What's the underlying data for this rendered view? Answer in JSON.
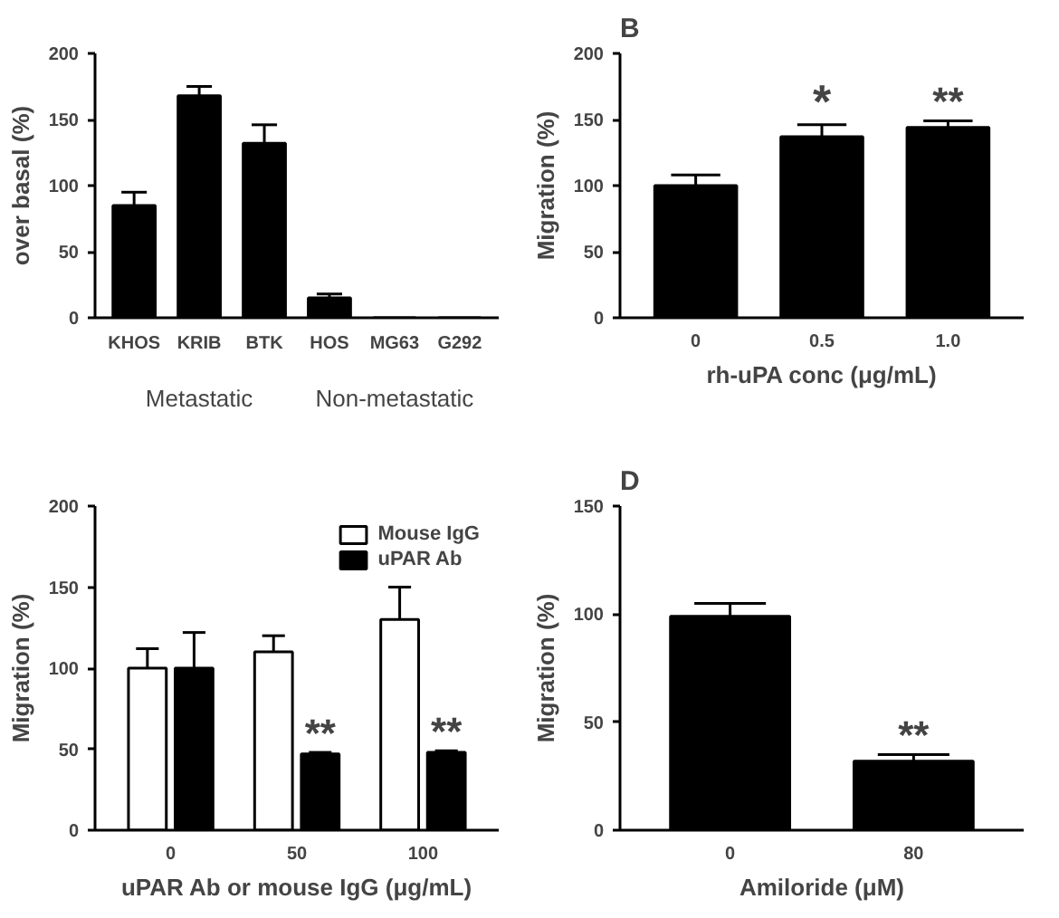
{
  "chart_data": [
    {
      "type": "bar",
      "ylabel": "over basal (%)",
      "categories": [
        "KHOS",
        "KRIB",
        "BTK",
        "HOS",
        "MG63",
        "G292"
      ],
      "values": [
        85,
        168,
        132,
        15,
        0,
        0
      ],
      "color": "#000000",
      "errors": [
        [
          85,
          95
        ],
        [
          168,
          175
        ],
        [
          132,
          146
        ],
        [
          15,
          18
        ],
        null,
        null
      ],
      "ylim": [
        0,
        200
      ],
      "yticks": [
        0,
        50,
        100,
        150,
        200
      ],
      "grid": false,
      "legend": false,
      "annotations": [
        "Metastatic",
        "Non-metastatic"
      ]
    },
    {
      "type": "bar",
      "title": "B",
      "ylabel": "Migration (%)",
      "xlabel": "rh-uPA conc (μg/mL)",
      "categories": [
        "0",
        "0.5",
        "1.0"
      ],
      "values": [
        100,
        137,
        144
      ],
      "color": "#000000",
      "errors": [
        [
          100,
          108
        ],
        [
          137,
          146
        ],
        [
          144,
          149
        ]
      ],
      "ylim": [
        0,
        200
      ],
      "yticks": [
        0,
        50,
        100,
        150,
        200
      ],
      "grid": false,
      "legend": false,
      "annotations": [
        {
          "text": "*",
          "x": "0.5",
          "y": 146
        },
        {
          "text": "**",
          "x": "1.0",
          "y": 149
        }
      ]
    },
    {
      "type": "bar",
      "ylabel": "Migration (%)",
      "xlabel": "uPAR Ab or mouse IgG (μg/mL)",
      "categories": [
        "0",
        "50",
        "100"
      ],
      "series": [
        {
          "name": "Mouse IgG",
          "color": "#ffffff",
          "values": [
            100,
            110,
            130
          ],
          "errors": [
            [
              100,
              112
            ],
            [
              110,
              120
            ],
            [
              130,
              150
            ]
          ]
        },
        {
          "name": "uPAR Ab",
          "color": "#000000",
          "values": [
            100,
            47,
            48
          ],
          "errors": [
            [
              100,
              122
            ],
            [
              47,
              48
            ],
            [
              48,
              49
            ]
          ]
        }
      ],
      "ylim": [
        0,
        200
      ],
      "yticks": [
        0,
        50,
        100,
        150,
        200
      ],
      "grid": false,
      "legend": "top right",
      "annotations": [
        {
          "text": "**",
          "x": "50",
          "y": 48
        },
        {
          "text": "**",
          "x": "100",
          "y": 49
        }
      ]
    },
    {
      "type": "bar",
      "title": "D",
      "ylabel": "Migration (%)",
      "xlabel": "Amiloride (μM)",
      "categories": [
        "0",
        "80"
      ],
      "values": [
        99,
        32
      ],
      "color": "#000000",
      "errors": [
        [
          99,
          105
        ],
        [
          32,
          35
        ]
      ],
      "ylim": [
        0,
        150
      ],
      "yticks": [
        0,
        50,
        100,
        150
      ],
      "grid": false,
      "legend": false,
      "annotations": [
        {
          "text": "**",
          "x": "80",
          "y": 35
        }
      ]
    }
  ]
}
